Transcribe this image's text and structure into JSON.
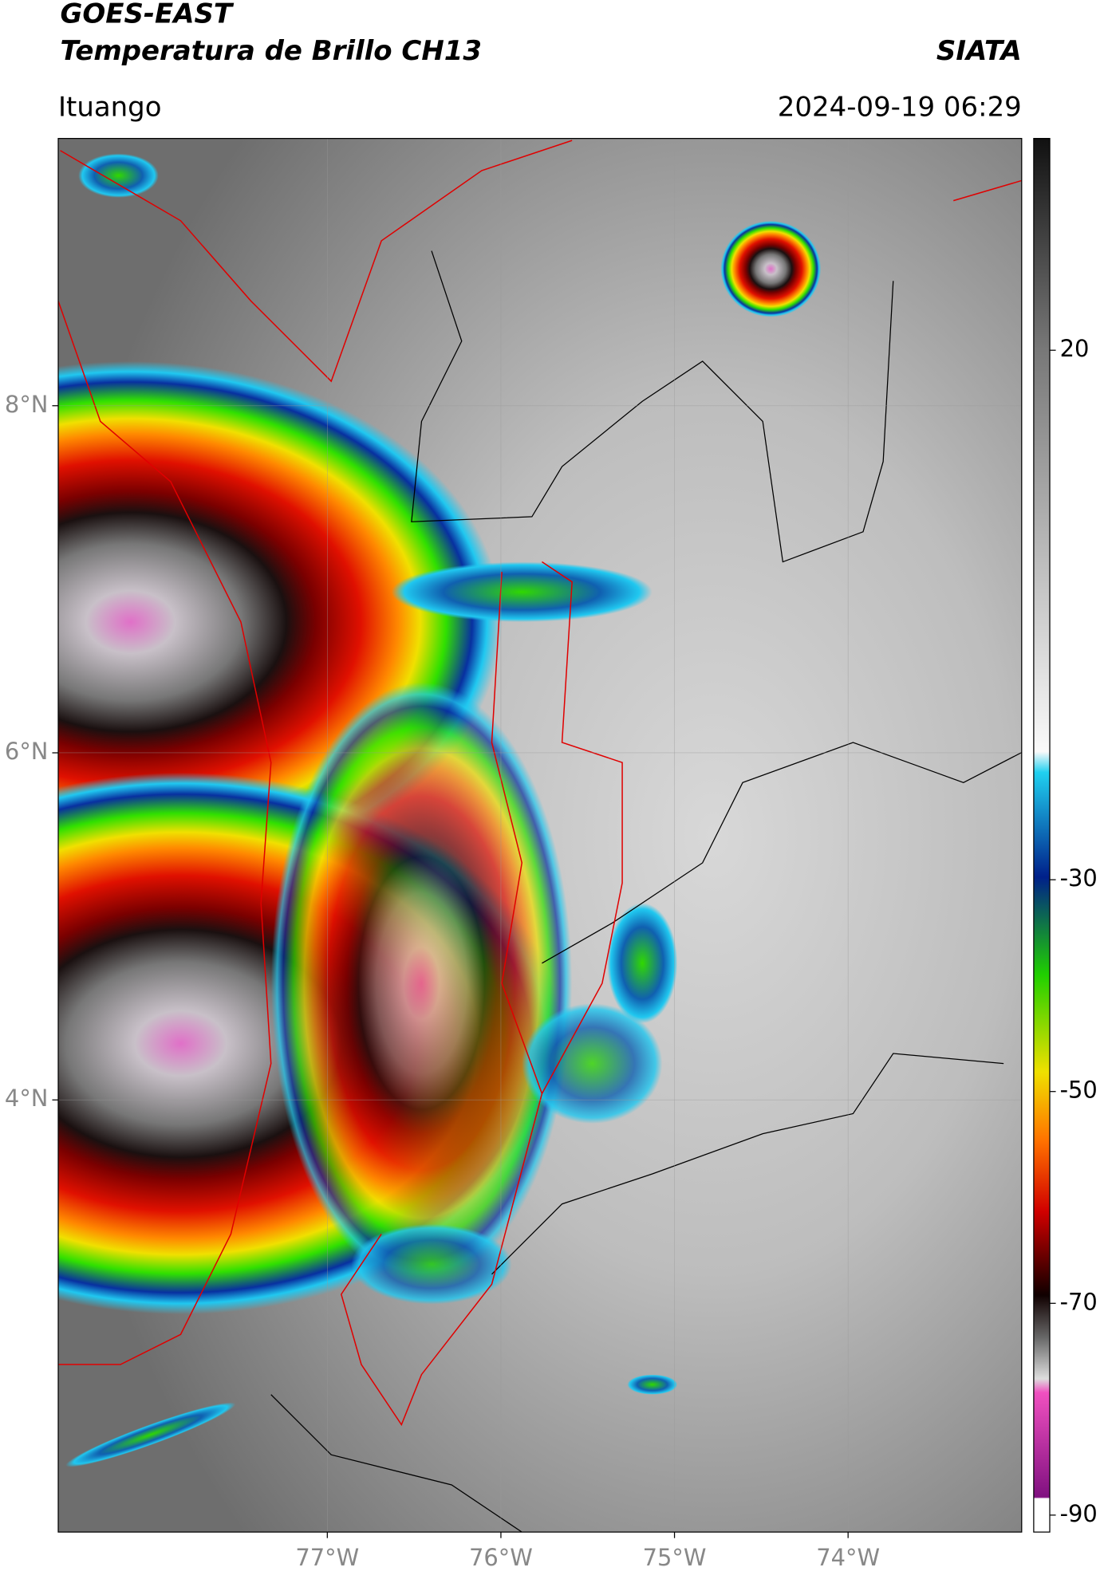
{
  "map": {
    "title": "GOES-EAST",
    "subtitle": "Temperatura de Brillo CH13",
    "source": "SIATA",
    "region": "Ituango",
    "datetime": "2024-09-19 06:29",
    "xlim": [
      -78.55,
      -73.0
    ],
    "ylim": [
      1.51,
      9.54
    ],
    "xticks": [
      {
        "value": -77,
        "label": "77°W"
      },
      {
        "value": -76,
        "label": "76°W"
      },
      {
        "value": -75,
        "label": "75°W"
      },
      {
        "value": -74,
        "label": "74°W"
      }
    ],
    "yticks": [
      {
        "value": 8,
        "label": "8°N"
      },
      {
        "value": 6,
        "label": "6°N"
      },
      {
        "value": 4,
        "label": "4°N"
      }
    ],
    "grid": true,
    "colorbar": {
      "lim": [
        -91.6,
        40
      ],
      "ticks": [
        20,
        -30,
        -50,
        -70,
        -90
      ]
    }
  }
}
